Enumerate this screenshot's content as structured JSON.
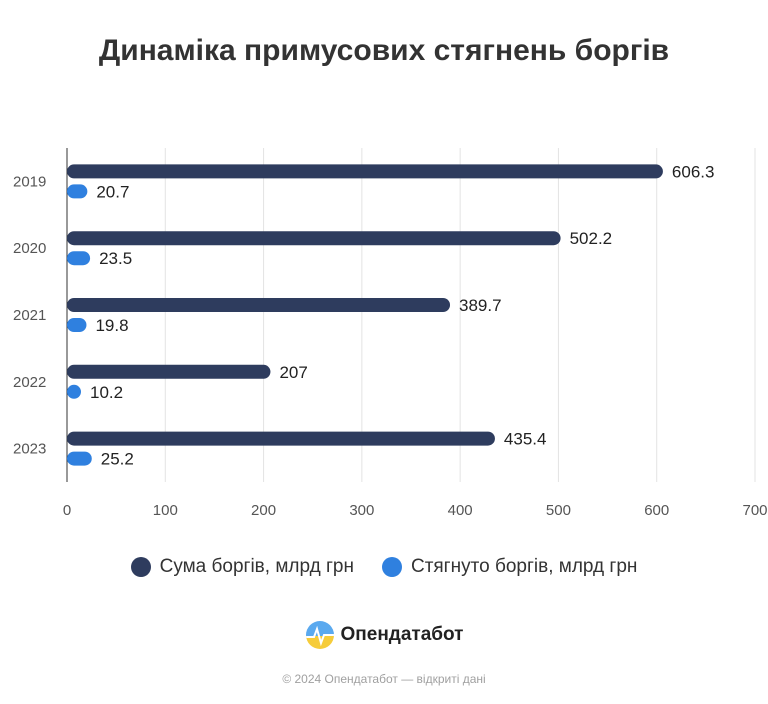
{
  "chart_data": {
    "type": "bar",
    "orientation": "horizontal",
    "title": "Динаміка примусових стягнень боргів",
    "categories": [
      "2019",
      "2020",
      "2021",
      "2022",
      "2023"
    ],
    "series": [
      {
        "name": "Сума боргів, млрд грн",
        "values": [
          606.3,
          502.2,
          389.7,
          207,
          435.4
        ],
        "color": "#2e3c5e"
      },
      {
        "name": "Стягнуто боргів, млрд грн",
        "values": [
          20.7,
          23.5,
          19.8,
          10.2,
          25.2
        ],
        "color": "#2f80df"
      }
    ],
    "value_labels": [
      [
        "606.3",
        "502.2",
        "389.7",
        "207",
        "435.4"
      ],
      [
        "20.7",
        "23.5",
        "19.8",
        "10.2",
        "25.2"
      ]
    ],
    "xlim": [
      0,
      700
    ],
    "xticks": [
      "0",
      "100",
      "200",
      "300",
      "400",
      "500",
      "600",
      "700"
    ],
    "grid": true,
    "legend_position": "bottom"
  },
  "brand": {
    "name": "Опендатабот"
  },
  "footer": {
    "text": "© 2024 Опендатабот — відкриті дані"
  }
}
